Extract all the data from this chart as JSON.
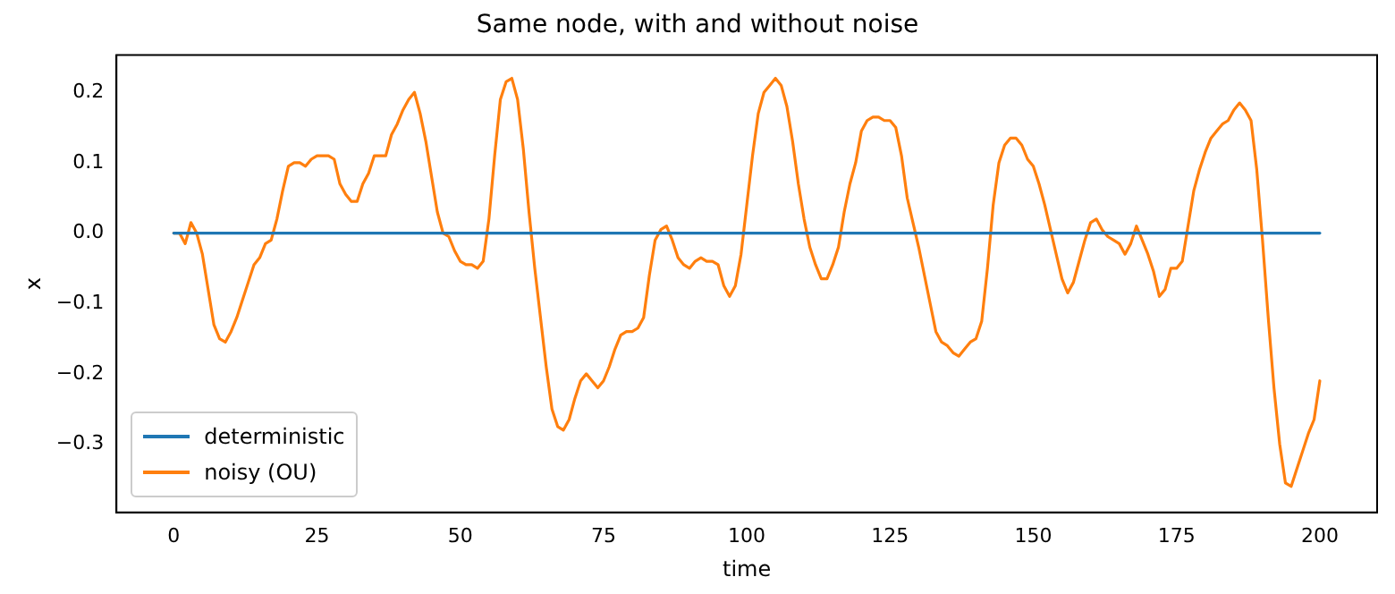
{
  "chart_data": {
    "type": "line",
    "title": "Same node, with and without noise",
    "xlabel": "time",
    "ylabel": "x",
    "xlim": [
      -10,
      210
    ],
    "xticks": [
      0,
      25,
      50,
      75,
      100,
      125,
      150,
      175,
      200
    ],
    "ylim": [
      -0.397,
      0.253
    ],
    "yticks": [
      {
        "value": -0.3,
        "label": "−0.3"
      },
      {
        "value": -0.2,
        "label": "−0.2"
      },
      {
        "value": -0.1,
        "label": "−0.1"
      },
      {
        "value": 0,
        "label": "0.0"
      },
      {
        "value": 0.1,
        "label": "0.1"
      },
      {
        "value": 0.2,
        "label": "0.2"
      }
    ],
    "grid": false,
    "legend": "bottom left",
    "marker": "none",
    "line_style": "solid",
    "series": [
      {
        "name": "deterministic",
        "color": "#1f77b4",
        "x": [
          0,
          200
        ],
        "values": [
          0,
          0
        ]
      },
      {
        "name": "noisy (OU)",
        "color": "#ff7f0e",
        "x": [
          0,
          1,
          2,
          3,
          4,
          5,
          6,
          7,
          8,
          9,
          10,
          11,
          12,
          13,
          14,
          15,
          16,
          17,
          18,
          19,
          20,
          21,
          22,
          23,
          24,
          25,
          26,
          27,
          28,
          29,
          30,
          31,
          32,
          33,
          34,
          35,
          36,
          37,
          38,
          39,
          40,
          41,
          42,
          43,
          44,
          45,
          46,
          47,
          48,
          49,
          50,
          51,
          52,
          53,
          54,
          55,
          56,
          57,
          58,
          59,
          60,
          61,
          62,
          63,
          64,
          65,
          66,
          67,
          68,
          69,
          70,
          71,
          72,
          73,
          74,
          75,
          76,
          77,
          78,
          79,
          80,
          81,
          82,
          83,
          84,
          85,
          86,
          87,
          88,
          89,
          90,
          91,
          92,
          93,
          94,
          95,
          96,
          97,
          98,
          99,
          100,
          101,
          102,
          103,
          104,
          105,
          106,
          107,
          108,
          109,
          110,
          111,
          112,
          113,
          114,
          115,
          116,
          117,
          118,
          119,
          120,
          121,
          122,
          123,
          124,
          125,
          126,
          127,
          128,
          129,
          130,
          131,
          132,
          133,
          134,
          135,
          136,
          137,
          138,
          139,
          140,
          141,
          142,
          143,
          144,
          145,
          146,
          147,
          148,
          149,
          150,
          151,
          152,
          153,
          154,
          155,
          156,
          157,
          158,
          159,
          160,
          161,
          162,
          163,
          164,
          165,
          166,
          167,
          168,
          169,
          170,
          171,
          172,
          173,
          174,
          175,
          176,
          177,
          178,
          179,
          180,
          181,
          182,
          183,
          184,
          185,
          186,
          187,
          188,
          189,
          190,
          191,
          192,
          193,
          194,
          195,
          196,
          197,
          198,
          199,
          200
        ],
        "values": [
          0,
          0,
          -0.015,
          0.015,
          0,
          -0.03,
          -0.08,
          -0.13,
          -0.15,
          -0.155,
          -0.14,
          -0.12,
          -0.095,
          -0.07,
          -0.045,
          -0.035,
          -0.015,
          -0.01,
          0.02,
          0.06,
          0.095,
          0.1,
          0.1,
          0.095,
          0.105,
          0.11,
          0.11,
          0.11,
          0.105,
          0.07,
          0.055,
          0.045,
          0.045,
          0.07,
          0.085,
          0.11,
          0.11,
          0.11,
          0.14,
          0.155,
          0.175,
          0.19,
          0.2,
          0.17,
          0.13,
          0.08,
          0.03,
          0,
          -0.005,
          -0.025,
          -0.04,
          -0.045,
          -0.045,
          -0.05,
          -0.04,
          0.02,
          0.11,
          0.19,
          0.215,
          0.22,
          0.19,
          0.12,
          0.03,
          -0.05,
          -0.12,
          -0.19,
          -0.25,
          -0.275,
          -0.28,
          -0.265,
          -0.235,
          -0.21,
          -0.2,
          -0.21,
          -0.22,
          -0.21,
          -0.19,
          -0.165,
          -0.145,
          -0.14,
          -0.14,
          -0.135,
          -0.12,
          -0.06,
          -0.01,
          0.005,
          0.01,
          -0.01,
          -0.035,
          -0.045,
          -0.05,
          -0.04,
          -0.035,
          -0.04,
          -0.04,
          -0.045,
          -0.075,
          -0.09,
          -0.075,
          -0.03,
          0.04,
          0.11,
          0.17,
          0.2,
          0.21,
          0.22,
          0.21,
          0.18,
          0.13,
          0.07,
          0.02,
          -0.02,
          -0.045,
          -0.065,
          -0.065,
          -0.045,
          -0.02,
          0.03,
          0.07,
          0.1,
          0.145,
          0.16,
          0.165,
          0.165,
          0.16,
          0.16,
          0.15,
          0.11,
          0.05,
          0.015,
          -0.02,
          -0.06,
          -0.1,
          -0.14,
          -0.155,
          -0.16,
          -0.17,
          -0.175,
          -0.165,
          -0.155,
          -0.15,
          -0.125,
          -0.05,
          0.04,
          0.1,
          0.125,
          0.135,
          0.135,
          0.125,
          0.105,
          0.095,
          0.07,
          0.04,
          0.005,
          -0.03,
          -0.065,
          -0.085,
          -0.07,
          -0.04,
          -0.01,
          0.015,
          0.02,
          0.005,
          -0.005,
          -0.01,
          -0.015,
          -0.03,
          -0.015,
          0.01,
          -0.01,
          -0.03,
          -0.055,
          -0.09,
          -0.08,
          -0.05,
          -0.05,
          -0.04,
          0.01,
          0.06,
          0.09,
          0.115,
          0.135,
          0.145,
          0.155,
          0.16,
          0.175,
          0.185,
          0.175,
          0.16,
          0.09,
          -0.01,
          -0.12,
          -0.22,
          -0.3,
          -0.355,
          -0.36,
          -0.335,
          -0.31,
          -0.285,
          -0.265,
          -0.21
        ]
      }
    ]
  }
}
